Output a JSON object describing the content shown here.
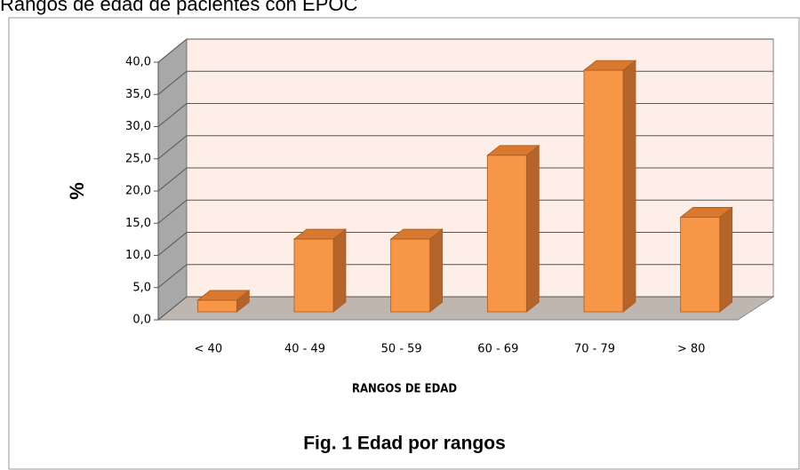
{
  "chart_data": {
    "type": "bar3d",
    "title": "Rangos de edad de pacientes con EPOC",
    "caption": "Fig. 1  Edad por rangos",
    "x_label": "RANGOS DE EDAD",
    "y_label": "%",
    "categories": [
      "< 40",
      "40 - 49",
      "50 - 59",
      "60 - 69",
      "70 - 79",
      "> 80"
    ],
    "values": [
      1.8,
      11.3,
      11.3,
      24.3,
      37.5,
      14.7
    ],
    "color": "#f79646",
    "ylim": [
      0,
      40
    ],
    "yticks": [
      {
        "value": 0,
        "label": "0,0"
      },
      {
        "value": 5,
        "label": "5,0"
      },
      {
        "value": 10,
        "label": "10,0"
      },
      {
        "value": 15,
        "label": "15,0"
      },
      {
        "value": 20,
        "label": "20,0"
      },
      {
        "value": 25,
        "label": "25,0"
      },
      {
        "value": 30,
        "label": "30,0"
      },
      {
        "value": 35,
        "label": "35,0"
      },
      {
        "value": 40,
        "label": "40,0"
      }
    ],
    "grid": true
  }
}
